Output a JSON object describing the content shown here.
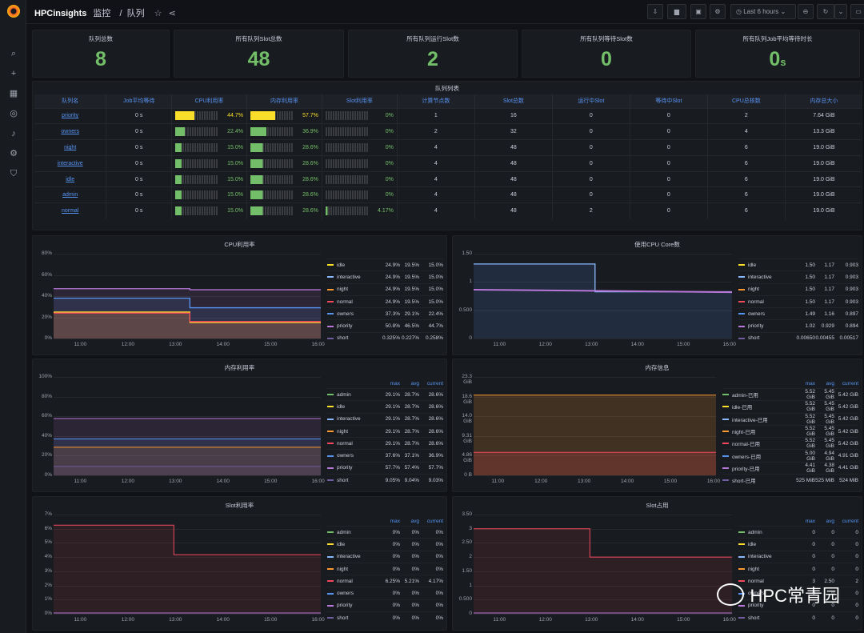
{
  "app": {
    "name": "HPCinsights",
    "crumb1": "监控",
    "crumb2": "队列",
    "time_range": "Last 6 hours"
  },
  "stats": [
    {
      "title": "队列总数",
      "value": "8",
      "unit": ""
    },
    {
      "title": "所有队列Slot总数",
      "value": "48",
      "unit": ""
    },
    {
      "title": "所有队列运行Slot数",
      "value": "2",
      "unit": ""
    },
    {
      "title": "所有队列等待Slot数",
      "value": "0",
      "unit": ""
    },
    {
      "title": "所有队列Job平均等待时长",
      "value": "0",
      "unit": "s"
    }
  ],
  "queue_table": {
    "title": "队列列表",
    "columns": [
      "队列名",
      "Job平均等待",
      "CPU利用率",
      "内存利用率",
      "Slot利用率",
      "计算节点数",
      "Slot总数",
      "运行中Slot",
      "等待中Slot",
      "CPU总核数",
      "内存总大小"
    ],
    "rows": [
      [
        "priority",
        "0 s",
        "44.7%",
        "57.7%",
        "0%",
        "1",
        "16",
        "0",
        "0",
        "2",
        "7.64 GiB"
      ],
      [
        "owners",
        "0 s",
        "22.4%",
        "36.9%",
        "0%",
        "2",
        "32",
        "0",
        "0",
        "4",
        "13.3 GiB"
      ],
      [
        "night",
        "0 s",
        "15.0%",
        "28.6%",
        "0%",
        "4",
        "48",
        "0",
        "0",
        "6",
        "19.0 GiB"
      ],
      [
        "interactive",
        "0 s",
        "15.0%",
        "28.6%",
        "0%",
        "4",
        "48",
        "0",
        "0",
        "6",
        "19.0 GiB"
      ],
      [
        "idle",
        "0 s",
        "15.0%",
        "28.6%",
        "0%",
        "4",
        "48",
        "0",
        "0",
        "6",
        "19.0 GiB"
      ],
      [
        "admin",
        "0 s",
        "15.0%",
        "28.6%",
        "0%",
        "4",
        "48",
        "0",
        "0",
        "6",
        "19.0 GiB"
      ],
      [
        "normal",
        "0 s",
        "15.0%",
        "28.6%",
        "4.17%",
        "4",
        "48",
        "2",
        "0",
        "6",
        "19.0 GiB"
      ]
    ],
    "cpu_fill": [
      0.447,
      0.224,
      0.15,
      0.15,
      0.15,
      0.15,
      0.15
    ],
    "mem_fill": [
      0.577,
      0.369,
      0.286,
      0.286,
      0.286,
      0.286,
      0.286
    ],
    "slot_fill": [
      0,
      0,
      0,
      0,
      0,
      0,
      0.0417
    ]
  },
  "time_ticks": [
    "11:00",
    "12:00",
    "13:00",
    "14:00",
    "15:00",
    "16:00"
  ],
  "legend_header": {
    "max": "max",
    "avg": "avg",
    "current": "current"
  },
  "panels": [
    {
      "title": "CPU利用率",
      "yticks": [
        "0%",
        "20%",
        "40%",
        "60%",
        "80%"
      ],
      "header": false,
      "legend": [
        [
          "idle",
          "24.9%",
          "19.5%",
          "15.0%",
          "#fade2a"
        ],
        [
          "interactive",
          "24.9%",
          "19.5%",
          "15.0%",
          "#8ab8ff"
        ],
        [
          "night",
          "24.9%",
          "19.5%",
          "15.0%",
          "#ff9830"
        ],
        [
          "normal",
          "24.9%",
          "19.5%",
          "15.0%",
          "#f2495c"
        ],
        [
          "owners",
          "37.3%",
          "29.1%",
          "22.4%",
          "#5794f2"
        ],
        [
          "priority",
          "50.8%",
          "46.5%",
          "44.7%",
          "#b877d9"
        ],
        [
          "short",
          "0.325%",
          "0.227%",
          "0.258%",
          "#705da0"
        ]
      ]
    },
    {
      "title": "使用CPU Core数",
      "yticks": [
        "0",
        "0.500",
        "1",
        "1.50"
      ],
      "header": false,
      "legend": [
        [
          "idle",
          "1.50",
          "1.17",
          "0.903",
          "#fade2a"
        ],
        [
          "interactive",
          "1.50",
          "1.17",
          "0.903",
          "#8ab8ff"
        ],
        [
          "night",
          "1.50",
          "1.17",
          "0.903",
          "#ff9830"
        ],
        [
          "normal",
          "1.50",
          "1.17",
          "0.903",
          "#f2495c"
        ],
        [
          "owners",
          "1.49",
          "1.16",
          "0.897",
          "#5794f2"
        ],
        [
          "priority",
          "1.02",
          "0.929",
          "0.894",
          "#b877d9"
        ],
        [
          "short",
          "0.00650",
          "0.00455",
          "0.00517",
          "#705da0"
        ]
      ]
    },
    {
      "title": "内存利用率",
      "yticks": [
        "0%",
        "20%",
        "40%",
        "60%",
        "80%",
        "100%"
      ],
      "header": true,
      "legend": [
        [
          "admin",
          "29.1%",
          "28.7%",
          "28.6%",
          "#73bf69"
        ],
        [
          "idle",
          "29.1%",
          "28.7%",
          "28.6%",
          "#fade2a"
        ],
        [
          "interactive",
          "29.1%",
          "28.7%",
          "28.6%",
          "#8ab8ff"
        ],
        [
          "night",
          "29.1%",
          "28.7%",
          "28.6%",
          "#ff9830"
        ],
        [
          "normal",
          "29.1%",
          "28.7%",
          "28.6%",
          "#f2495c"
        ],
        [
          "owners",
          "37.6%",
          "37.1%",
          "36.9%",
          "#5794f2"
        ],
        [
          "priority",
          "57.7%",
          "57.4%",
          "57.7%",
          "#b877d9"
        ],
        [
          "short",
          "9.05%",
          "9.04%",
          "9.03%",
          "#705da0"
        ]
      ]
    },
    {
      "title": "内存信息",
      "yticks": [
        "0 B",
        "4.86 GiB",
        "9.31 GiB",
        "14.0 GiB",
        "18.6 GiB",
        "23.3 GiB"
      ],
      "header": true,
      "legend": [
        [
          "admin-已用",
          "5.52 GiB",
          "5.45 GiB",
          "5.42 GiB",
          "#73bf69"
        ],
        [
          "idle-已用",
          "5.52 GiB",
          "5.45 GiB",
          "5.42 GiB",
          "#fade2a"
        ],
        [
          "interactive-已用",
          "5.52 GiB",
          "5.45 GiB",
          "5.42 GiB",
          "#8ab8ff"
        ],
        [
          "night-已用",
          "5.52 GiB",
          "5.45 GiB",
          "5.42 GiB",
          "#ff9830"
        ],
        [
          "normal-已用",
          "5.52 GiB",
          "5.45 GiB",
          "5.42 GiB",
          "#f2495c"
        ],
        [
          "owners-已用",
          "5.00 GiB",
          "4.94 GiB",
          "4.91 GiB",
          "#5794f2"
        ],
        [
          "priority-已用",
          "4.41 GiB",
          "4.38 GiB",
          "4.41 GiB",
          "#b877d9"
        ],
        [
          "short-已用",
          "525 MiB",
          "525 MiB",
          "524 MiB",
          "#705da0"
        ]
      ]
    },
    {
      "title": "Slot利用率",
      "yticks": [
        "0%",
        "1%",
        "2%",
        "3%",
        "4%",
        "5%",
        "6%",
        "7%"
      ],
      "header": true,
      "legend": [
        [
          "admin",
          "0%",
          "0%",
          "0%",
          "#73bf69"
        ],
        [
          "idle",
          "0%",
          "0%",
          "0%",
          "#fade2a"
        ],
        [
          "interactive",
          "0%",
          "0%",
          "0%",
          "#8ab8ff"
        ],
        [
          "night",
          "0%",
          "0%",
          "0%",
          "#ff9830"
        ],
        [
          "normal",
          "6.25%",
          "5.21%",
          "4.17%",
          "#f2495c"
        ],
        [
          "owners",
          "0%",
          "0%",
          "0%",
          "#5794f2"
        ],
        [
          "priority",
          "0%",
          "0%",
          "0%",
          "#b877d9"
        ],
        [
          "short",
          "0%",
          "0%",
          "0%",
          "#705da0"
        ]
      ]
    },
    {
      "title": "Slot占用",
      "yticks": [
        "0",
        "0.500",
        "1",
        "1.50",
        "2",
        "2.50",
        "3",
        "3.50"
      ],
      "header": true,
      "legend": [
        [
          "admin",
          "0",
          "0",
          "0",
          "#73bf69"
        ],
        [
          "idle",
          "0",
          "0",
          "0",
          "#fade2a"
        ],
        [
          "interactive",
          "0",
          "0",
          "0",
          "#8ab8ff"
        ],
        [
          "night",
          "0",
          "0",
          "0",
          "#ff9830"
        ],
        [
          "normal",
          "3",
          "2.50",
          "2",
          "#f2495c"
        ],
        [
          "owners",
          "0",
          "0",
          "0",
          "#5794f2"
        ],
        [
          "priority",
          "0",
          "0",
          "0",
          "#b877d9"
        ],
        [
          "short",
          "0",
          "0",
          "0",
          "#705da0"
        ]
      ]
    }
  ],
  "watermark": "HPC常青园"
}
